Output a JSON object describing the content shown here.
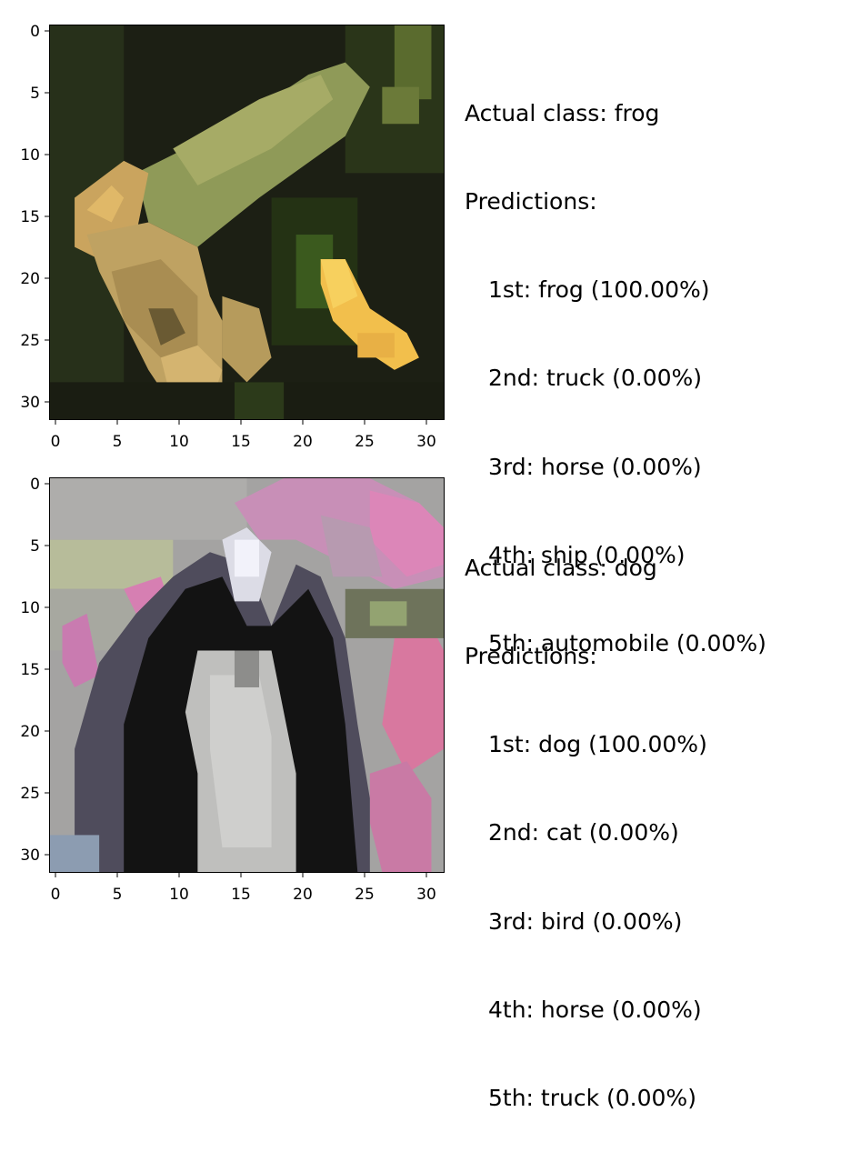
{
  "panels": [
    {
      "actual_label": "Actual class: frog",
      "predictions_label": "Predictions:",
      "predictions": [
        "1st: frog (100.00%)",
        "2nd: truck (0.00%)",
        "3rd: horse (0.00%)",
        "4th: ship (0.00%)",
        "5th: automobile (0.00%)"
      ],
      "image_description": "pixelated photo of a frog",
      "x_ticks": [
        "0",
        "5",
        "10",
        "15",
        "20",
        "25",
        "30"
      ],
      "y_ticks": [
        "0",
        "5",
        "10",
        "15",
        "20",
        "25",
        "30"
      ],
      "palette": {
        "background": "#1c1f14",
        "mid": "#3a4622",
        "body": "#8f9a58",
        "highlight": "#c8b56a",
        "spot": "#f2bf4c"
      }
    },
    {
      "actual_label": "Actual class: dog",
      "predictions_label": "Predictions:",
      "predictions": [
        "1st: dog (100.00%)",
        "2nd: cat (0.00%)",
        "3rd: bird (0.00%)",
        "4th: horse (0.00%)",
        "5th: truck (0.00%)"
      ],
      "image_description": "pixelated photo of a dog",
      "x_ticks": [
        "0",
        "5",
        "10",
        "15",
        "20",
        "25",
        "30"
      ],
      "y_ticks": [
        "0",
        "5",
        "10",
        "15",
        "20",
        "25",
        "30"
      ],
      "palette": {
        "background": "#a4a3a2",
        "flowers": "#d77fb3",
        "foliage": "#93a371",
        "fur_dark": "#131313",
        "fur_grey": "#bfbfbd",
        "shadow": "#4f4c5c"
      }
    }
  ],
  "axis_range": [
    0,
    31
  ]
}
